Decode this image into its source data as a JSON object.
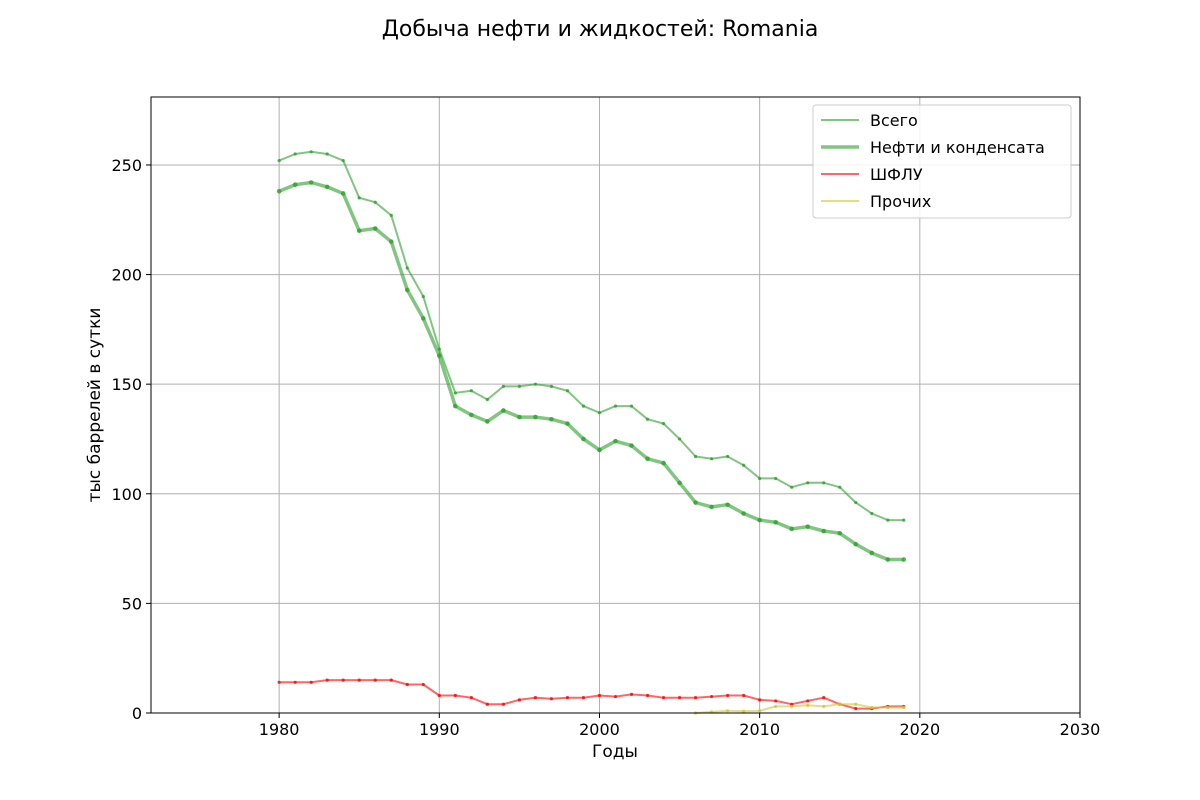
{
  "chart_data": {
    "type": "line",
    "title": "Добыча нефти и жидкостей: Romania",
    "xlabel": "Годы",
    "ylabel": "тыс баррелей в сутки",
    "xlim": [
      1972,
      2030
    ],
    "ylim": [
      0,
      281
    ],
    "xticks": [
      1980,
      1990,
      2000,
      2010,
      2020,
      2030
    ],
    "yticks": [
      0,
      50,
      100,
      150,
      200,
      250
    ],
    "grid": true,
    "legend_position": "top-right",
    "series": [
      {
        "name": "Всего",
        "color": "#2ca02c",
        "style": "thin",
        "x": [
          1980,
          1981,
          1982,
          1983,
          1984,
          1985,
          1986,
          1987,
          1988,
          1989,
          1990,
          1991,
          1992,
          1993,
          1994,
          1995,
          1996,
          1997,
          1998,
          1999,
          2000,
          2001,
          2002,
          2003,
          2004,
          2005,
          2006,
          2007,
          2008,
          2009,
          2010,
          2011,
          2012,
          2013,
          2014,
          2015,
          2016,
          2017,
          2018,
          2019
        ],
        "y": [
          252,
          255,
          256,
          255,
          252,
          235,
          233,
          227,
          203,
          190,
          166,
          146,
          147,
          143,
          149,
          149,
          150,
          149,
          147,
          140,
          137,
          140,
          140,
          134,
          132,
          125,
          117,
          116,
          117,
          113,
          107,
          107,
          103,
          105,
          105,
          103,
          96,
          91,
          88,
          88
        ]
      },
      {
        "name": "Нефти и конденсата",
        "color": "#2ca02c",
        "style": "thick",
        "x": [
          1980,
          1981,
          1982,
          1983,
          1984,
          1985,
          1986,
          1987,
          1988,
          1989,
          1990,
          1991,
          1992,
          1993,
          1994,
          1995,
          1996,
          1997,
          1998,
          1999,
          2000,
          2001,
          2002,
          2003,
          2004,
          2005,
          2006,
          2007,
          2008,
          2009,
          2010,
          2011,
          2012,
          2013,
          2014,
          2015,
          2016,
          2017,
          2018,
          2019
        ],
        "y": [
          238,
          241,
          242,
          240,
          237,
          220,
          221,
          215,
          193,
          180,
          163,
          140,
          136,
          133,
          138,
          135,
          135,
          134,
          132,
          125,
          120,
          124,
          122,
          116,
          114,
          105,
          96,
          94,
          95,
          91,
          88,
          87,
          84,
          85,
          83,
          82,
          77,
          73,
          70,
          70
        ]
      },
      {
        "name": "ШФЛУ",
        "color": "#ff0000",
        "style": "thin",
        "x": [
          1980,
          1981,
          1982,
          1983,
          1984,
          1985,
          1986,
          1987,
          1988,
          1989,
          1990,
          1991,
          1992,
          1993,
          1994,
          1995,
          1996,
          1997,
          1998,
          1999,
          2000,
          2001,
          2002,
          2003,
          2004,
          2005,
          2006,
          2007,
          2008,
          2009,
          2010,
          2011,
          2012,
          2013,
          2014,
          2015,
          2016,
          2017,
          2018,
          2019
        ],
        "y": [
          14,
          14,
          14,
          15,
          15,
          15,
          15,
          15,
          13,
          13,
          8,
          8,
          7,
          4,
          4,
          6,
          7,
          6.5,
          7,
          7,
          8,
          7.5,
          8.5,
          8,
          7,
          7,
          7,
          7.5,
          8,
          8,
          6,
          5.5,
          4,
          5.5,
          7,
          4,
          2,
          2,
          3,
          3
        ]
      },
      {
        "name": "Прочих",
        "color": "#d4c730",
        "style": "thin",
        "x": [
          2006,
          2007,
          2008,
          2009,
          2010,
          2011,
          2012,
          2013,
          2014,
          2015,
          2016,
          2017,
          2018,
          2019
        ],
        "y": [
          0,
          0.5,
          1,
          0.8,
          1,
          3,
          3,
          3.5,
          3,
          4,
          4,
          2.5,
          2.5,
          2.5
        ]
      }
    ]
  }
}
